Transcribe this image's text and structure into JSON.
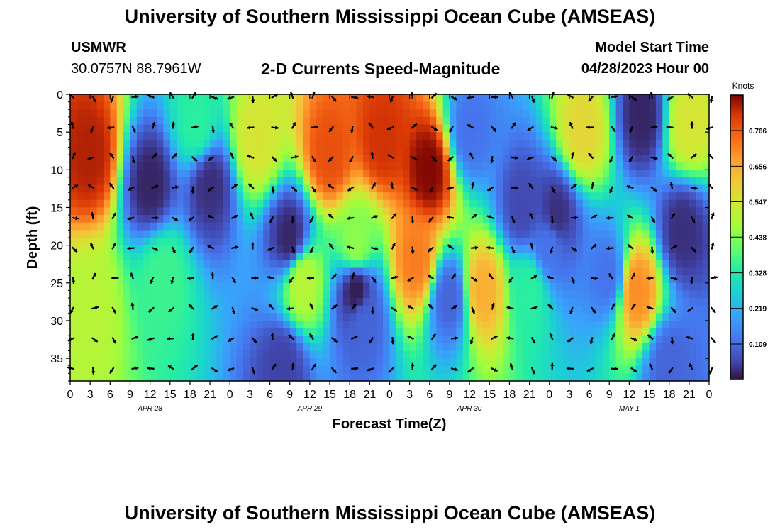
{
  "page": {
    "title": "University of Southern Mississippi Ocean Cube (AMSEAS)",
    "title_bottom": "University of Southern Mississippi Ocean Cube (AMSEAS)",
    "station_name": "USMWR",
    "station_coords": "30.0757N  88.7961W",
    "chart_title": "2-D Currents Speed-Magnitude",
    "model_start_label": "Model Start Time",
    "model_start_value": "04/28/2023 Hour 00"
  },
  "chart_data": {
    "type": "heatmap",
    "title": "2-D Currents Speed-Magnitude",
    "xlabel": "Forecast Time(Z)",
    "ylabel": "Depth (ft)",
    "x_range_hours": [
      0,
      96
    ],
    "y_range_ft": [
      0,
      38
    ],
    "x_ticks": [
      {
        "hour": 0,
        "label": "0"
      },
      {
        "hour": 3,
        "label": "3"
      },
      {
        "hour": 6,
        "label": "6"
      },
      {
        "hour": 9,
        "label": "9"
      },
      {
        "hour": 12,
        "label": "12"
      },
      {
        "hour": 15,
        "label": "15"
      },
      {
        "hour": 18,
        "label": "18"
      },
      {
        "hour": 21,
        "label": "21"
      },
      {
        "hour": 24,
        "label": "0"
      },
      {
        "hour": 27,
        "label": "3"
      },
      {
        "hour": 30,
        "label": "6"
      },
      {
        "hour": 33,
        "label": "9"
      },
      {
        "hour": 36,
        "label": "12"
      },
      {
        "hour": 39,
        "label": "15"
      },
      {
        "hour": 42,
        "label": "18"
      },
      {
        "hour": 45,
        "label": "21"
      },
      {
        "hour": 48,
        "label": "0"
      },
      {
        "hour": 51,
        "label": "3"
      },
      {
        "hour": 54,
        "label": "6"
      },
      {
        "hour": 57,
        "label": "9"
      },
      {
        "hour": 60,
        "label": "12"
      },
      {
        "hour": 63,
        "label": "15"
      },
      {
        "hour": 66,
        "label": "18"
      },
      {
        "hour": 69,
        "label": "21"
      },
      {
        "hour": 72,
        "label": "0"
      },
      {
        "hour": 75,
        "label": "3"
      },
      {
        "hour": 78,
        "label": "6"
      },
      {
        "hour": 81,
        "label": "9"
      },
      {
        "hour": 84,
        "label": "12"
      },
      {
        "hour": 87,
        "label": "15"
      },
      {
        "hour": 90,
        "label": "18"
      },
      {
        "hour": 93,
        "label": "21"
      },
      {
        "hour": 96,
        "label": "0"
      }
    ],
    "date_labels": [
      {
        "hour": 12,
        "label": "APR 28"
      },
      {
        "hour": 36,
        "label": "APR 29"
      },
      {
        "hour": 60,
        "label": "APR 30"
      },
      {
        "hour": 84,
        "label": "MAY 1"
      }
    ],
    "y_ticks": [
      {
        "depth": 0,
        "label": "0"
      },
      {
        "depth": 5,
        "label": "5"
      },
      {
        "depth": 10,
        "label": "10"
      },
      {
        "depth": 15,
        "label": "15"
      },
      {
        "depth": 20,
        "label": "20"
      },
      {
        "depth": 25,
        "label": "25"
      },
      {
        "depth": 30,
        "label": "30"
      },
      {
        "depth": 35,
        "label": "35"
      }
    ],
    "colorbar": {
      "unit": "Knots",
      "range": [
        0.0,
        0.875
      ],
      "tick_values": [
        0.109,
        0.219,
        0.328,
        0.438,
        0.547,
        0.656,
        0.766
      ],
      "tick_labels": [
        "0.109",
        "0.219",
        "0.328",
        "0.438",
        "0.547",
        "0.656",
        "0.766"
      ]
    },
    "speed_features_knots": [
      {
        "hour": 3,
        "depth": 8,
        "speed": 0.84
      },
      {
        "hour": 3,
        "depth": 28,
        "speed": 0.5
      },
      {
        "hour": 12,
        "depth": 12,
        "speed": 0.02
      },
      {
        "hour": 14,
        "depth": 24,
        "speed": 0.36
      },
      {
        "hour": 19,
        "depth": 4,
        "speed": 0.34
      },
      {
        "hour": 21,
        "depth": 12,
        "speed": 0.03
      },
      {
        "hour": 28,
        "depth": 6,
        "speed": 0.55
      },
      {
        "hour": 33,
        "depth": 19,
        "speed": 0.02
      },
      {
        "hour": 35,
        "depth": 25,
        "speed": 0.5
      },
      {
        "hour": 39,
        "depth": 8,
        "speed": 0.78
      },
      {
        "hour": 43,
        "depth": 20,
        "speed": 0.45
      },
      {
        "hour": 43,
        "depth": 26,
        "speed": 0.01
      },
      {
        "hour": 44,
        "depth": 30,
        "speed": 0.1
      },
      {
        "hour": 47,
        "depth": 6,
        "speed": 0.82
      },
      {
        "hour": 54,
        "depth": 10,
        "speed": 0.87
      },
      {
        "hour": 52,
        "depth": 22,
        "speed": 0.72
      },
      {
        "hour": 57,
        "depth": 27,
        "speed": 0.1
      },
      {
        "hour": 62,
        "depth": 26,
        "speed": 0.65
      },
      {
        "hour": 69,
        "depth": 26,
        "speed": 0.34
      },
      {
        "hour": 68,
        "depth": 15,
        "speed": 0.06
      },
      {
        "hour": 73,
        "depth": 16,
        "speed": 0.03
      },
      {
        "hour": 77,
        "depth": 5,
        "speed": 0.58
      },
      {
        "hour": 81,
        "depth": 24,
        "speed": 0.12
      },
      {
        "hour": 85,
        "depth": 26,
        "speed": 0.7
      },
      {
        "hour": 86,
        "depth": 3,
        "speed": 0.02
      },
      {
        "hour": 93,
        "depth": 4,
        "speed": 0.55
      },
      {
        "hour": 92,
        "depth": 18,
        "speed": 0.03
      },
      {
        "hour": 72,
        "depth": 20,
        "speed": 0.12
      },
      {
        "hour": 60,
        "depth": 5,
        "speed": 0.12
      },
      {
        "hour": 32,
        "depth": 36,
        "speed": 0.05
      },
      {
        "hour": 90,
        "depth": 36,
        "speed": 0.1
      }
    ],
    "vector_grid": {
      "hours_start": 0,
      "hours_step": 3,
      "count": 33,
      "depths_ft": [
        0,
        4,
        8,
        12,
        16,
        20,
        24,
        28,
        32,
        36
      ],
      "direction_bases_deg": [
        310,
        150,
        200,
        80,
        290,
        330,
        30,
        110,
        250,
        175,
        60,
        340,
        20,
        140,
        100,
        280,
        200,
        350,
        45,
        120,
        260,
        90,
        330,
        160,
        15,
        300,
        220,
        80,
        125,
        350,
        240,
        310,
        190
      ]
    }
  }
}
